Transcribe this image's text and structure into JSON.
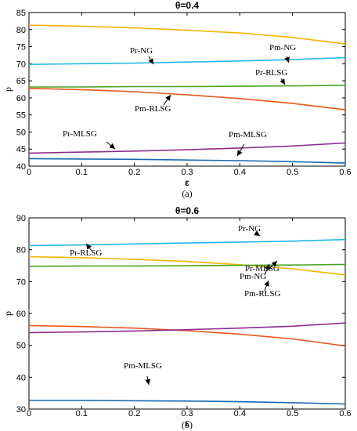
{
  "chart_data": [
    {
      "type": "line",
      "panel_label": "(a)",
      "title": "θ=0.4",
      "xlabel": "ε",
      "ylabel": "p",
      "xlim": [
        0,
        0.6
      ],
      "ylim": [
        40,
        85
      ],
      "xticks": [
        "0",
        "0.1",
        "0.2",
        "0.3",
        "0.4",
        "0.5",
        "0.6"
      ],
      "yticks": [
        "40",
        "45",
        "50",
        "55",
        "60",
        "65",
        "70",
        "75",
        "80",
        "85"
      ],
      "grid": false,
      "series": [
        {
          "name": "Pm-NG",
          "color": "#F5B400",
          "x": [
            0,
            0.1,
            0.2,
            0.3,
            0.4,
            0.5,
            0.6
          ],
          "y": [
            81.3,
            81.0,
            80.5,
            79.8,
            79.0,
            77.7,
            75.8
          ]
        },
        {
          "name": "Pr-NG",
          "color": "#1FB8E6",
          "x": [
            0,
            0.1,
            0.2,
            0.3,
            0.4,
            0.5,
            0.6
          ],
          "y": [
            69.8,
            70.0,
            70.2,
            70.5,
            70.8,
            71.2,
            71.8
          ]
        },
        {
          "name": "Pr-RLSG",
          "color": "#49A320",
          "x": [
            0,
            0.1,
            0.2,
            0.3,
            0.4,
            0.5,
            0.6
          ],
          "y": [
            63.2,
            63.2,
            63.3,
            63.3,
            63.4,
            63.5,
            63.7
          ]
        },
        {
          "name": "Pm-RLSG",
          "color": "#E8561A",
          "x": [
            0,
            0.1,
            0.2,
            0.3,
            0.4,
            0.5,
            0.6
          ],
          "y": [
            62.8,
            62.4,
            61.8,
            60.9,
            59.8,
            58.4,
            56.5
          ]
        },
        {
          "name": "Pr-MLSG",
          "color": "#8E2C91",
          "x": [
            0,
            0.1,
            0.2,
            0.3,
            0.4,
            0.5,
            0.6
          ],
          "y": [
            43.8,
            44.1,
            44.4,
            44.8,
            45.3,
            45.9,
            46.8
          ]
        },
        {
          "name": "Pm-MLSG",
          "color": "#1768B5",
          "x": [
            0,
            0.1,
            0.2,
            0.3,
            0.4,
            0.5,
            0.6
          ],
          "y": [
            42.2,
            42.1,
            42.0,
            41.8,
            41.6,
            41.3,
            40.9
          ]
        }
      ],
      "annotations": [
        {
          "text": "Pm-NG",
          "x": 0.5,
          "y": 78.3
        },
        {
          "text": "Pr-NG",
          "x": 0.26,
          "y": 70.3
        },
        {
          "text": "Pr-RLSG",
          "x": 0.46,
          "y": 63.5
        },
        {
          "text": "Pm-RLSG",
          "x": 0.27,
          "y": 61.5
        },
        {
          "text": "Pr-MLSG",
          "x": 0.2,
          "y": 44.4
        },
        {
          "text": "Pm-MLSG",
          "x": 0.39,
          "y": 41.7
        }
      ]
    },
    {
      "type": "line",
      "panel_label": "(b)",
      "title": "θ=0.6",
      "xlabel": "ε",
      "ylabel": "p",
      "xlim": [
        0,
        0.6
      ],
      "ylim": [
        30,
        90
      ],
      "xticks": [
        "0",
        "0.1",
        "0.2",
        "0.3",
        "0.4",
        "0.5",
        "0.6"
      ],
      "yticks": [
        "30",
        "40",
        "50",
        "60",
        "70",
        "80",
        "90"
      ],
      "grid": false,
      "series": [
        {
          "name": "Pr-NG",
          "color": "#1FB8E6",
          "x": [
            0,
            0.1,
            0.2,
            0.3,
            0.4,
            0.5,
            0.6
          ],
          "y": [
            81.3,
            81.5,
            81.8,
            82.1,
            82.4,
            82.7,
            83.2
          ]
        },
        {
          "name": "Pm-NG",
          "color": "#F5B400",
          "x": [
            0,
            0.1,
            0.2,
            0.3,
            0.4,
            0.5,
            0.6
          ],
          "y": [
            77.8,
            77.5,
            77.0,
            76.3,
            75.3,
            74.0,
            72.1
          ]
        },
        {
          "name": "Pr-RLSG",
          "color": "#49A320",
          "x": [
            0,
            0.1,
            0.2,
            0.3,
            0.4,
            0.5,
            0.6
          ],
          "y": [
            74.8,
            74.9,
            74.9,
            75.0,
            75.1,
            75.2,
            75.4
          ]
        },
        {
          "name": "Pm-RLSG",
          "color": "#E8561A",
          "x": [
            0,
            0.1,
            0.2,
            0.3,
            0.4,
            0.5,
            0.6
          ],
          "y": [
            56.2,
            55.9,
            55.4,
            54.6,
            53.5,
            52.0,
            49.8
          ]
        },
        {
          "name": "Pr-MLSG",
          "color": "#8E2C91",
          "x": [
            0,
            0.1,
            0.2,
            0.3,
            0.4,
            0.5,
            0.6
          ],
          "y": [
            54.0,
            54.2,
            54.5,
            54.9,
            55.4,
            56.0,
            57.0
          ]
        },
        {
          "name": "Pm-MLSG",
          "color": "#1768B5",
          "x": [
            0,
            0.1,
            0.2,
            0.3,
            0.4,
            0.5,
            0.6
          ],
          "y": [
            32.7,
            32.7,
            32.6,
            32.5,
            32.3,
            32.0,
            31.6
          ]
        }
      ],
      "annotations": [
        {
          "text": "Pr-NG",
          "x": 0.47,
          "y": 82.3
        },
        {
          "text": "Pr-RLSG",
          "x": 0.16,
          "y": 75.0
        },
        {
          "text": "Pm-NG",
          "x": 0.45,
          "y": 75.4
        },
        {
          "text": "Pr-MLSG",
          "x": 0.48,
          "y": 56.0
        },
        {
          "text": "Pm-RLSG",
          "x": 0.45,
          "y": 53.0
        },
        {
          "text": "Pm-MLSG",
          "x": 0.22,
          "y": 32.6
        }
      ]
    }
  ]
}
